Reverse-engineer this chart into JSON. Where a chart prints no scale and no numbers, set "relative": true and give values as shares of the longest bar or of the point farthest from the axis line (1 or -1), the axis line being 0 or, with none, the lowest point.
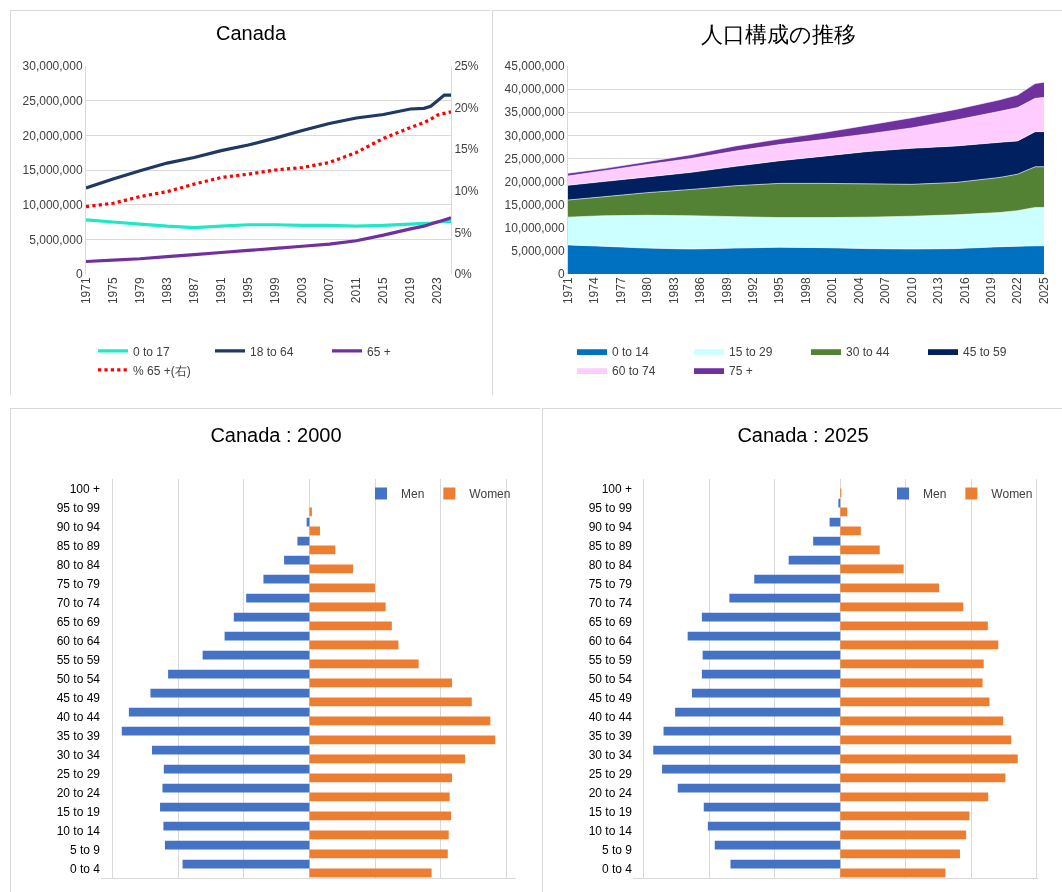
{
  "chart_data": [
    {
      "type": "line",
      "title": "Canada",
      "x": [
        1971,
        1975,
        1979,
        1983,
        1987,
        1991,
        1995,
        1999,
        2003,
        2007,
        2011,
        2015,
        2019,
        2021,
        2022,
        2023,
        2024,
        2025
      ],
      "series": [
        {
          "name": "0 to 17",
          "color": "#1ee8c8",
          "values": [
            7800000.0,
            7500000.0,
            7200000.0,
            6900000.0,
            6700000.0,
            6900000.0,
            7100000.0,
            7100000.0,
            7000000.0,
            7000000.0,
            6900000.0,
            7000000.0,
            7200000.0,
            7300000.0,
            7300000.0,
            7500000.0,
            7600000.0,
            7600000.0
          ]
        },
        {
          "name": "18 to 64",
          "color": "#1f3864",
          "values": [
            12400000.0,
            13700000.0,
            14900000.0,
            16000000.0,
            16800000.0,
            17800000.0,
            18600000.0,
            19600000.0,
            20700000.0,
            21700000.0,
            22500000.0,
            23000000.0,
            23800000.0,
            23900000.0,
            24200000.0,
            25000000.0,
            25800000.0,
            25800000.0
          ]
        },
        {
          "name": "65 +",
          "color": "#7030a0",
          "values": [
            1800000.0,
            2000000.0,
            2200000.0,
            2500000.0,
            2800000.0,
            3100000.0,
            3400000.0,
            3700000.0,
            4000000.0,
            4300000.0,
            4800000.0,
            5600000.0,
            6500000.0,
            6900000.0,
            7200000.0,
            7500000.0,
            7800000.0,
            8100000.0
          ]
        },
        {
          "name": "% 65 +(右)",
          "color": "#ff0000",
          "axis": "y2",
          "line_style": "dotted",
          "values": [
            8.1,
            8.5,
            9.3,
            9.9,
            10.8,
            11.6,
            12.0,
            12.5,
            12.8,
            13.4,
            14.6,
            16.3,
            17.6,
            18.2,
            18.6,
            19.1,
            19.3,
            19.5
          ]
        }
      ],
      "xlim": [
        1971,
        2025
      ],
      "xticks": [
        1971,
        1975,
        1979,
        1983,
        1987,
        1991,
        1995,
        1999,
        2003,
        2007,
        2011,
        2015,
        2019,
        2023
      ],
      "ylim": [
        0,
        30000000
      ],
      "yticks": [
        {
          "value": 0,
          "label": "0"
        },
        {
          "value": 5000000,
          "label": "5,000,000"
        },
        {
          "value": 10000000,
          "label": "10,000,000"
        },
        {
          "value": 15000000,
          "label": "15,000,000"
        },
        {
          "value": 20000000,
          "label": "20,000,000"
        },
        {
          "value": 25000000,
          "label": "25,000,000"
        },
        {
          "value": 30000000,
          "label": "30,000,000"
        }
      ],
      "y2lim": [
        0,
        25
      ],
      "y2ticks": [
        {
          "value": 0,
          "label": "0%"
        },
        {
          "value": 5,
          "label": "5%"
        },
        {
          "value": 10,
          "label": "10%"
        },
        {
          "value": 15,
          "label": "15%"
        },
        {
          "value": 20,
          "label": "20%"
        },
        {
          "value": 25,
          "label": "25%"
        }
      ],
      "grid": "y",
      "legend": "bottom",
      "marker": "none",
      "line_style": "solid"
    },
    {
      "type": "area",
      "stacked": true,
      "title": "人口構成の推移",
      "x": [
        1971,
        1975,
        1980,
        1985,
        1990,
        1995,
        2000,
        2005,
        2010,
        2015,
        2020,
        2022,
        2024,
        2025
      ],
      "series": [
        {
          "name": "0 to 14",
          "color": "#0070c0",
          "values": [
            6300000.0,
            6000000.0,
            5600000.0,
            5400000.0,
            5600000.0,
            5800000.0,
            5700000.0,
            5500000.0,
            5400000.0,
            5500000.0,
            5900000.0,
            6000000.0,
            6100000.0,
            6100000.0
          ]
        },
        {
          "name": "15 to 29",
          "color": "#ccffff",
          "values": [
            6000000.0,
            6600000.0,
            7100000.0,
            7200000.0,
            6800000.0,
            6400000.0,
            6500000.0,
            6800000.0,
            7100000.0,
            7300000.0,
            7400000.0,
            7700000.0,
            8300000.0,
            8300000.0
          ]
        },
        {
          "name": "30 to 44",
          "color": "#548235",
          "values": [
            3700000.0,
            4100000.0,
            4900000.0,
            5700000.0,
            6700000.0,
            7400000.0,
            7400000.0,
            7200000.0,
            6900000.0,
            7000000.0,
            7600000.0,
            7900000.0,
            8800000.0,
            8800000.0
          ]
        },
        {
          "name": "45 to 59",
          "color": "#002060",
          "values": [
            3200000.0,
            3300000.0,
            3400000.0,
            3700000.0,
            4200000.0,
            4900000.0,
            5900000.0,
            7000000.0,
            7800000.0,
            7900000.0,
            7600000.0,
            7200000.0,
            7600000.0,
            7600000.0
          ]
        },
        {
          "name": "60 to 74",
          "color": "#ffccff",
          "values": [
            2000000.0,
            2300000.0,
            2700000.0,
            3000000.0,
            3300000.0,
            3500000.0,
            3600000.0,
            3800000.0,
            4400000.0,
            5600000.0,
            6700000.0,
            7200000.0,
            7200000.0,
            7400000.0
          ]
        },
        {
          "name": "75 +",
          "color": "#7030a0",
          "values": [
            600000.0,
            500000.0,
            600000.0,
            800000.0,
            1100000.0,
            1200000.0,
            1500000.0,
            1900000.0,
            2200000.0,
            2300000.0,
            2500000.0,
            2700000.0,
            3200000.0,
            3300000.0
          ]
        }
      ],
      "xlim": [
        1971,
        2025
      ],
      "xticks": [
        1971,
        1974,
        1977,
        1980,
        1983,
        1986,
        1989,
        1992,
        1995,
        1998,
        2001,
        2004,
        2007,
        2010,
        2013,
        2016,
        2019,
        2022,
        2025
      ],
      "ylim": [
        0,
        45000000
      ],
      "yticks": [
        {
          "value": 0,
          "label": "0"
        },
        {
          "value": 5000000,
          "label": "5,000,000"
        },
        {
          "value": 10000000,
          "label": "10,000,000"
        },
        {
          "value": 15000000,
          "label": "15,000,000"
        },
        {
          "value": 20000000,
          "label": "20,000,000"
        },
        {
          "value": 25000000,
          "label": "25,000,000"
        },
        {
          "value": 30000000,
          "label": "30,000,000"
        },
        {
          "value": 35000000,
          "label": "35,000,000"
        },
        {
          "value": 40000000,
          "label": "40,000,000"
        },
        {
          "value": 45000000,
          "label": "45,000,000"
        }
      ],
      "grid": "y",
      "legend": "bottom"
    },
    {
      "type": "bar",
      "orientation": "horizontal",
      "relative": true,
      "title": "Canada : 2000",
      "categories": [
        "100 +",
        "95 to 99",
        "90 to 94",
        "85 to 89",
        "80 to 84",
        "75 to 79",
        "70 to 74",
        "65 to 69",
        "60 to 64",
        "55 to 59",
        "50 to 54",
        "45 to 49",
        "40 to 44",
        "35 to 39",
        "30 to 34",
        "25 to 29",
        "20 to 24",
        "15 to 19",
        "10 to 14",
        "5 to 9",
        "0 to 4"
      ],
      "series": [
        {
          "name": "Men",
          "color": "#4472c4",
          "values": [
            0,
            0,
            -0.015,
            -0.064,
            -0.135,
            -0.245,
            -0.337,
            -0.403,
            -0.452,
            -0.569,
            -0.753,
            -0.847,
            -0.962,
            -1,
            -0.839,
            -0.776,
            -0.783,
            -0.796,
            -0.778,
            -0.77,
            -0.676
          ]
        },
        {
          "name": "Women",
          "color": "#ed7d31",
          "values": [
            0,
            0.013,
            0.056,
            0.138,
            0.232,
            0.349,
            0.406,
            0.439,
            0.474,
            0.582,
            0.76,
            0.865,
            0.964,
            0.99,
            0.829,
            0.76,
            0.747,
            0.755,
            0.742,
            0.737,
            0.651
          ]
        }
      ],
      "grid": "x",
      "legend": "top right"
    },
    {
      "type": "bar",
      "orientation": "horizontal",
      "relative": true,
      "title": "Canada : 2025",
      "categories": [
        "100 +",
        "95 to 99",
        "90 to 94",
        "85 to 89",
        "80 to 84",
        "75 to 79",
        "70 to 74",
        "65 to 69",
        "60 to 64",
        "55 to 59",
        "50 to 54",
        "45 to 49",
        "40 to 44",
        "35 to 39",
        "30 to 34",
        "25 to 29",
        "20 to 24",
        "15 to 19",
        "10 to 14",
        "5 to 9",
        "0 to 4"
      ],
      "series": [
        {
          "name": "Men",
          "color": "#4472c4",
          "values": [
            0,
            -0.01,
            -0.057,
            -0.145,
            -0.276,
            -0.46,
            -0.593,
            -0.74,
            -0.816,
            -0.736,
            -0.74,
            -0.793,
            -0.883,
            -0.945,
            -1,
            -0.953,
            -0.869,
            -0.73,
            -0.708,
            -0.671,
            -0.587
          ]
        },
        {
          "name": "Women",
          "color": "#ed7d31",
          "values": [
            0.006,
            0.037,
            0.11,
            0.211,
            0.339,
            0.528,
            0.658,
            0.789,
            0.845,
            0.767,
            0.761,
            0.798,
            0.871,
            0.914,
            0.949,
            0.883,
            0.791,
            0.691,
            0.673,
            0.64,
            0.562
          ]
        }
      ],
      "grid": "x",
      "legend": "top right"
    }
  ]
}
